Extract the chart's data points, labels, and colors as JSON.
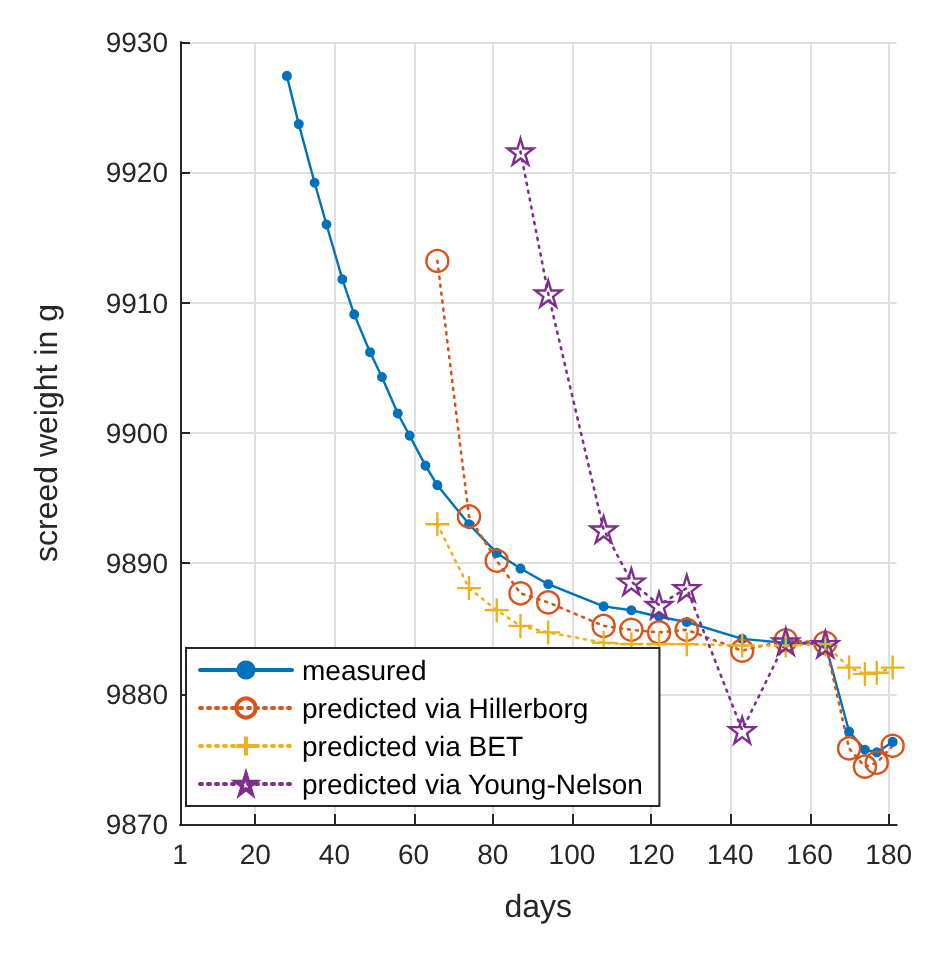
{
  "chart_data": {
    "type": "line",
    "xlabel": "days",
    "ylabel": "screed weight in g",
    "xlim": [
      1,
      182
    ],
    "xticks": [
      1,
      20,
      40,
      60,
      80,
      100,
      120,
      140,
      160,
      180
    ],
    "ylim": [
      9870,
      9930
    ],
    "yticks": [
      9870,
      9880,
      9890,
      9900,
      9910,
      9920,
      9930
    ],
    "grid": true,
    "legend": "bottom left",
    "series": [
      {
        "name": "measured",
        "color": "#0072bd",
        "marker": "circle",
        "line_style": "solid",
        "x": [
          28,
          31,
          35,
          38,
          42,
          45,
          49,
          52,
          56,
          59,
          63,
          66,
          74,
          81,
          87,
          94,
          108,
          115,
          122,
          129,
          143,
          154,
          164,
          170,
          174,
          177,
          181
        ],
        "values": [
          9927.4,
          9923.7,
          9919.2,
          9916.0,
          9911.8,
          9909.1,
          9906.2,
          9904.3,
          9901.5,
          9899.8,
          9897.5,
          9896.0,
          9893.0,
          9890.8,
          9889.6,
          9888.4,
          9886.7,
          9886.4,
          9885.9,
          9885.5,
          9884.2,
          9883.9,
          9883.8,
          9877.1,
          9875.7,
          9875.5,
          9876.3
        ]
      },
      {
        "name": "predicted via Hillerborg",
        "color": "#d95319",
        "marker": "circle",
        "line_style": "dotted",
        "x": [
          66,
          74,
          81,
          87,
          94,
          108,
          115,
          122,
          129,
          143,
          154,
          164,
          170,
          174,
          177,
          181
        ],
        "values": [
          9913.2,
          9893.6,
          9890.2,
          9887.7,
          9887.0,
          9885.2,
          9884.9,
          9884.7,
          9884.9,
          9883.3,
          9884.1,
          9883.9,
          9875.8,
          9874.4,
          9874.7,
          9876.0
        ]
      },
      {
        "name": "predicted via BET",
        "color": "#edb120",
        "marker": "cross",
        "line_style": "dotted",
        "x": [
          66,
          74,
          81,
          87,
          94,
          108,
          115,
          122,
          129,
          143,
          154,
          164,
          170,
          174,
          177,
          181
        ],
        "values": [
          9893.0,
          9888.1,
          9886.4,
          9885.2,
          9884.7,
          9883.9,
          9883.8,
          9883.8,
          9883.8,
          9883.7,
          9883.7,
          9883.8,
          9882.0,
          9881.5,
          9881.6,
          9882.0
        ]
      },
      {
        "name": "predicted via Young-Nelson",
        "color": "#7e2f8e",
        "marker": "star",
        "line_style": "dotted",
        "x": [
          87,
          94,
          108,
          115,
          122,
          129,
          143,
          154,
          164
        ],
        "values": [
          9921.6,
          9910.7,
          9892.6,
          9888.6,
          9886.8,
          9888.1,
          9877.2,
          9884.0,
          9883.8
        ]
      }
    ]
  }
}
